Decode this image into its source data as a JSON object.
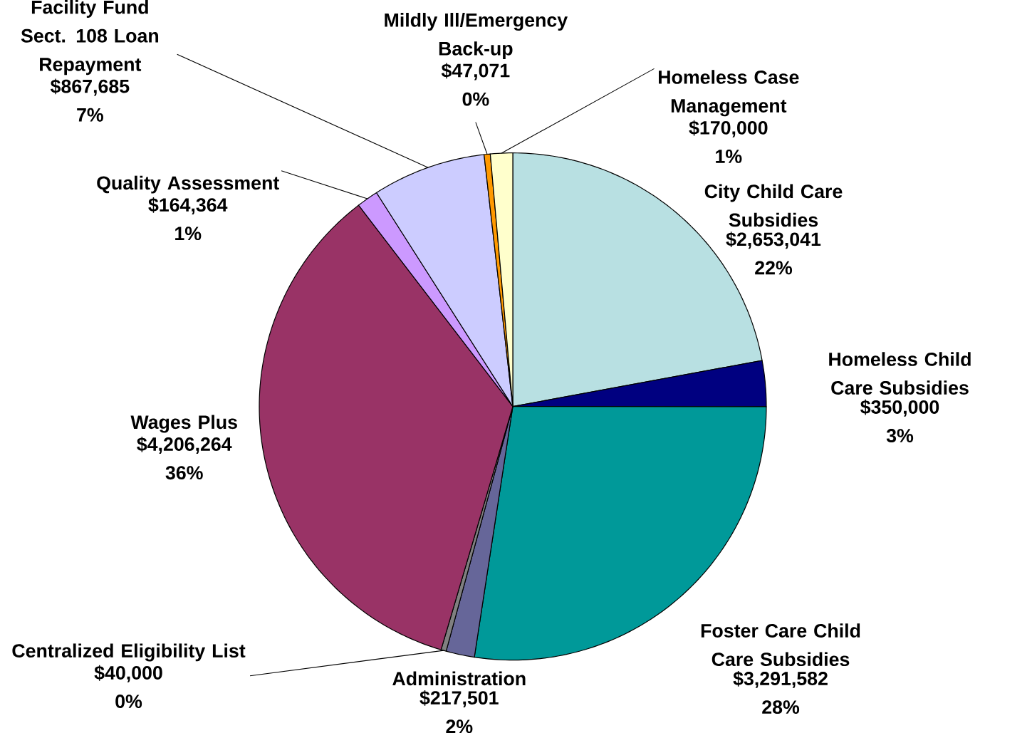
{
  "chart_data": {
    "type": "pie",
    "categories": [
      "City Child Care Subsidies",
      "Homeless Child Care Subsidies",
      "Foster Care Child Care Subsidies",
      "Administration",
      "Centralized Eligibility List",
      "Wages Plus",
      "Quality Assessment",
      "Facility Fund Sect. 108 Loan Repayment",
      "Mildly Ill/Emergency Back-up",
      "Homeless Case Management"
    ],
    "values": [
      2653041,
      350000,
      3291582,
      217501,
      40000,
      4206264,
      164364,
      867685,
      47071,
      170000
    ],
    "value_labels": [
      "$2,653,041 22%",
      "$350,000 3%",
      "$3,291,582 28%",
      "$217,501 2%",
      "$40,000 0%",
      "$4,206,264 36%",
      "$164,364 1%",
      "$867,685 7%",
      "$47,071 0%",
      "$170,000 1%"
    ],
    "colors": [
      "#b8e0e2",
      "#000080",
      "#009999",
      "#666699",
      "#808080",
      "#993366",
      "#cc99ff",
      "#ccccff",
      "#ff9900",
      "#ffffcc"
    ]
  }
}
